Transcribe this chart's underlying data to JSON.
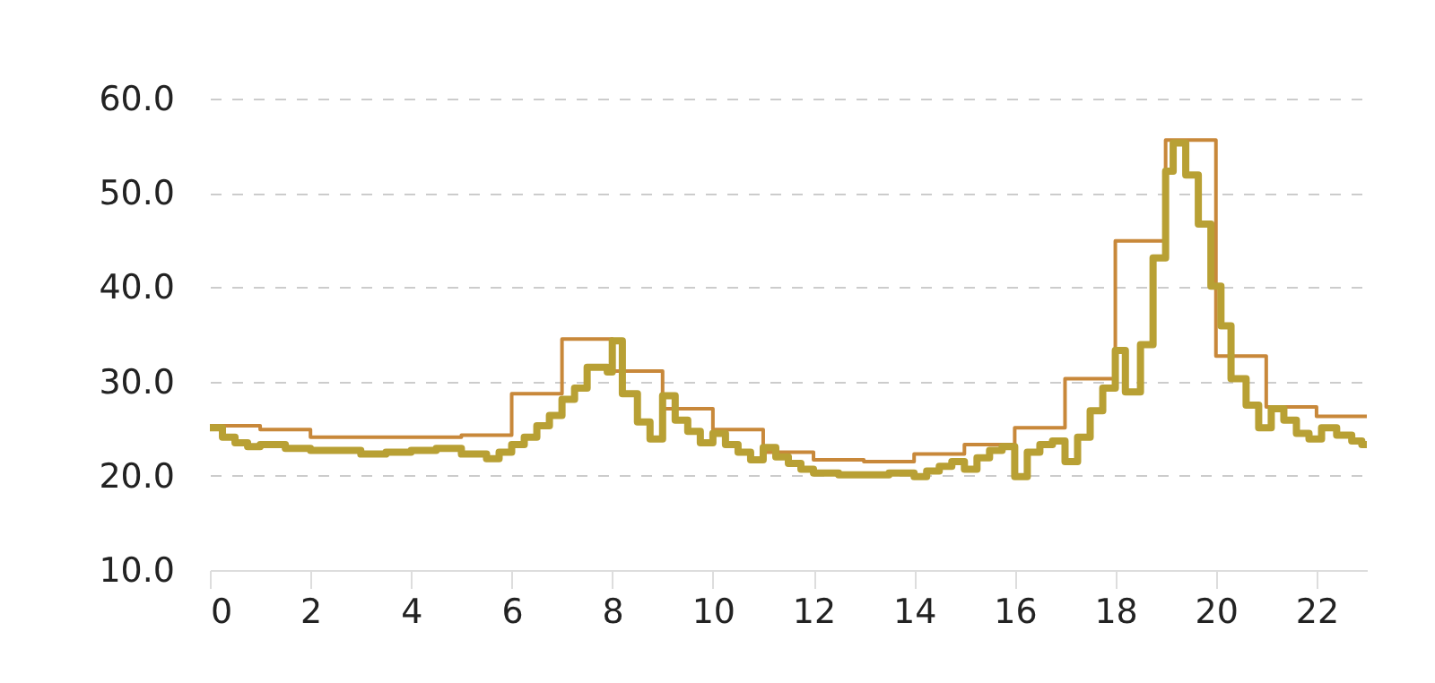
{
  "chart_data": {
    "type": "step",
    "xlim": [
      0,
      23
    ],
    "xticks": [
      0,
      2,
      4,
      6,
      8,
      10,
      12,
      14,
      16,
      18,
      20,
      22
    ],
    "ylim": [
      10,
      60
    ],
    "yticks": [
      {
        "value": 10,
        "label": "10.0"
      },
      {
        "value": 20,
        "label": "20.0"
      },
      {
        "value": 30,
        "label": "30.0"
      },
      {
        "value": 40,
        "label": "40.0"
      },
      {
        "value": 50,
        "label": "50.0"
      },
      {
        "value": 60,
        "label": "60.0"
      }
    ],
    "grid": "y",
    "line_style": "solid",
    "series": [
      {
        "color": "#c8883a",
        "x": [
          0,
          1,
          2,
          5,
          6,
          7,
          8,
          9,
          10,
          11,
          12,
          13,
          14,
          15,
          16,
          17,
          18,
          19,
          20,
          21,
          22,
          23
        ],
        "values": [
          25.3,
          24.9,
          24.1,
          24.3,
          28.7,
          34.5,
          31.1,
          27.1,
          24.9,
          22.5,
          21.7,
          21.5,
          22.3,
          23.3,
          25.1,
          30.3,
          44.9,
          55.6,
          32.7,
          27.3,
          26.3,
          26.3
        ]
      },
      {
        "color": "#b8a034",
        "x": [
          0,
          0.25,
          0.5,
          0.75,
          1,
          1.5,
          2,
          3,
          3.5,
          4,
          4.5,
          5,
          5.5,
          5.75,
          6,
          6.25,
          6.5,
          6.75,
          7,
          7.25,
          7.5,
          7.9,
          8.0,
          8.2,
          8.5,
          8.75,
          9.0,
          9.25,
          9.5,
          9.75,
          10,
          10.25,
          10.5,
          10.75,
          11,
          11.25,
          11.5,
          11.75,
          12,
          12.5,
          13,
          13.5,
          14,
          14.25,
          14.5,
          14.75,
          15,
          15.25,
          15.5,
          15.75,
          16,
          16.25,
          16.5,
          16.75,
          17,
          17.25,
          17.5,
          17.75,
          18,
          18.2,
          18.5,
          18.75,
          19,
          19.15,
          19.4,
          19.65,
          19.9,
          20.1,
          20.3,
          20.6,
          20.85,
          21.1,
          21.35,
          21.6,
          21.85,
          22.1,
          22.4,
          22.7,
          22.9,
          23
        ],
        "values": [
          25.1,
          24.1,
          23.5,
          23.1,
          23.3,
          22.9,
          22.7,
          22.3,
          22.5,
          22.7,
          22.9,
          22.3,
          21.8,
          22.5,
          23.3,
          24.1,
          25.3,
          26.4,
          28.1,
          29.3,
          31.5,
          31.0,
          34.3,
          28.7,
          25.7,
          23.9,
          28.5,
          25.9,
          24.7,
          23.5,
          24.5,
          23.3,
          22.5,
          21.7,
          23.0,
          22.0,
          21.3,
          20.7,
          20.3,
          20.1,
          20.1,
          20.3,
          19.9,
          20.5,
          21.0,
          21.5,
          20.7,
          21.9,
          22.7,
          23.1,
          19.9,
          22.5,
          23.3,
          23.7,
          21.5,
          24.1,
          26.9,
          29.3,
          33.3,
          28.9,
          33.9,
          43.1,
          52.3,
          55.3,
          51.9,
          46.7,
          40.1,
          35.9,
          30.3,
          27.5,
          25.1,
          27.1,
          25.9,
          24.5,
          23.9,
          25.1,
          24.3,
          23.7,
          23.3,
          23.3
        ]
      }
    ]
  }
}
